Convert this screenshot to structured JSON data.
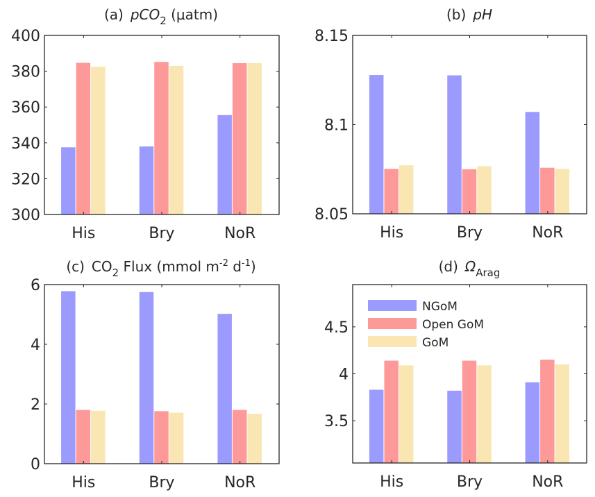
{
  "chart_data": [
    {
      "type": "bar",
      "panel": "(a)",
      "title": {
        "label": "(a)",
        "main": "pCO",
        "sub": "2",
        "sup": "",
        "suffix": " (μatm)",
        "italic": true
      },
      "categories": [
        "His",
        "Bry",
        "NoR"
      ],
      "ylim": [
        300,
        400
      ],
      "yticks": [
        300,
        320,
        340,
        360,
        380,
        400
      ],
      "ytick_labels": [
        "300",
        "320",
        "340",
        "360",
        "380",
        "400"
      ],
      "series": [
        {
          "name": "NGoM",
          "values": [
            337.5,
            338.0,
            355.5
          ]
        },
        {
          "name": "Open GoM",
          "values": [
            384.7,
            385.2,
            384.5
          ]
        },
        {
          "name": "GoM",
          "values": [
            382.5,
            383.0,
            384.5
          ]
        }
      ]
    },
    {
      "type": "bar",
      "panel": "(b)",
      "title": {
        "label": "(b)",
        "main": "pH",
        "sub": "",
        "sup": "",
        "suffix": "",
        "italic": true
      },
      "categories": [
        "His",
        "Bry",
        "NoR"
      ],
      "ylim": [
        8.05,
        8.15
      ],
      "yticks": [
        8.05,
        8.1,
        8.15
      ],
      "ytick_labels": [
        "8.05",
        "8.1",
        "8.15"
      ],
      "series": [
        {
          "name": "NGoM",
          "values": [
            8.1278,
            8.1276,
            8.1071
          ]
        },
        {
          "name": "Open GoM",
          "values": [
            8.0752,
            8.075,
            8.0758
          ]
        },
        {
          "name": "GoM",
          "values": [
            8.0772,
            8.0767,
            8.0752
          ]
        }
      ]
    },
    {
      "type": "bar",
      "panel": "(c)",
      "title": {
        "label": "(c)",
        "main": "CO",
        "sub": "2",
        "suffix": " Flux (mmol m",
        "sup1": "-2",
        "mid": " d",
        "sup2": "-1",
        "end": ")",
        "italic": false
      },
      "categories": [
        "His",
        "Bry",
        "NoR"
      ],
      "ylim": [
        0,
        6
      ],
      "yticks": [
        0,
        2,
        4,
        6
      ],
      "ytick_labels": [
        "0",
        "2",
        "4",
        "6"
      ],
      "series": [
        {
          "name": "NGoM",
          "values": [
            5.78,
            5.75,
            5.02
          ]
        },
        {
          "name": "Open GoM",
          "values": [
            1.8,
            1.76,
            1.8
          ]
        },
        {
          "name": "GoM",
          "values": [
            1.77,
            1.71,
            1.67
          ]
        }
      ]
    },
    {
      "type": "bar",
      "panel": "(d)",
      "title": {
        "label": "(d)",
        "main": "Ω",
        "sub": "Arag",
        "sup": "",
        "suffix": "",
        "italic": true
      },
      "categories": [
        "His",
        "Bry",
        "NoR"
      ],
      "ylim": [
        3.05,
        4.95
      ],
      "yticks": [
        3.5,
        4,
        4.5
      ],
      "ytick_labels": [
        "3.5",
        "4",
        "4.5"
      ],
      "legend": {
        "placement": "top-left",
        "entries": [
          "NGoM",
          "Open GoM",
          "GoM"
        ]
      },
      "series": [
        {
          "name": "NGoM",
          "values": [
            3.83,
            3.82,
            3.91
          ]
        },
        {
          "name": "Open GoM",
          "values": [
            4.14,
            4.14,
            4.15
          ]
        },
        {
          "name": "GoM",
          "values": [
            4.09,
            4.09,
            4.1
          ]
        }
      ]
    }
  ],
  "colors": {
    "NGoM": "#9b9bfe",
    "Open GoM": "#fe9999",
    "GoM": "#f9e6b2",
    "axis": "#262626"
  }
}
